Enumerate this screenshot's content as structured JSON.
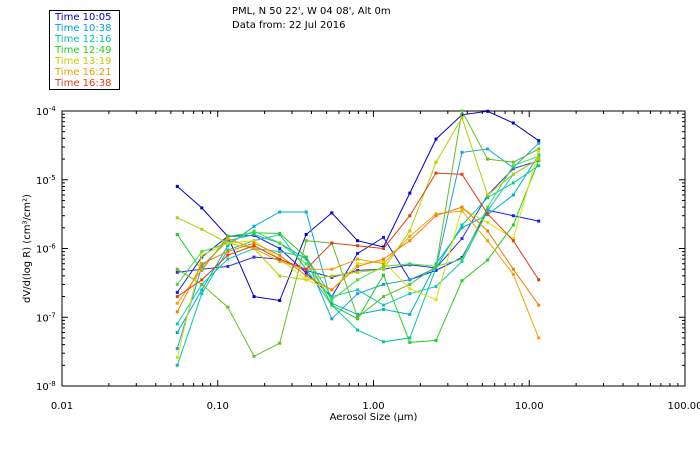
{
  "header": {
    "station": "PML, N 50 22', W 04 08', Alt 0m",
    "data_from": "Data from: 22 Jul 2016"
  },
  "chart_data": {
    "type": "line",
    "title": "PML, N 50 22', W 04 08', Alt 0m",
    "subtitle": "Data from: 22 Jul 2016",
    "xlabel": "Aerosol Size (µm)",
    "ylabel": "dV/d(log R) (cm³/cm²)",
    "xscale": "log",
    "yscale": "log",
    "xlim": [
      0.01,
      100
    ],
    "ylim": [
      1e-08,
      0.0001
    ],
    "x_ticks": [
      {
        "value": 0.01,
        "label": "0.01"
      },
      {
        "value": 0.1,
        "label": "0.10"
      },
      {
        "value": 1,
        "label": "1.00"
      },
      {
        "value": 10,
        "label": "10.00"
      },
      {
        "value": 100,
        "label": "100.00"
      }
    ],
    "y_ticks": [
      {
        "exp": -8,
        "mantissa": "10",
        "sup": "-8"
      },
      {
        "exp": -7,
        "mantissa": "10",
        "sup": "-7"
      },
      {
        "exp": -6,
        "mantissa": "10",
        "sup": "-6"
      },
      {
        "exp": -5,
        "mantissa": "10",
        "sup": "-5"
      },
      {
        "exp": -4,
        "mantissa": "10",
        "sup": "-4"
      }
    ],
    "x": [
      0.055,
      0.079,
      0.116,
      0.171,
      0.25,
      0.37,
      0.54,
      0.79,
      1.16,
      1.71,
      2.52,
      3.7,
      5.4,
      7.9,
      11.5
    ],
    "series": [
      {
        "name": "Time 10:05",
        "color": "#0000c8",
        "values": [
          8e-06,
          3.9e-06,
          1.5e-06,
          2e-07,
          1.75e-07,
          1.6e-06,
          3.3e-06,
          1.3e-06,
          1.05e-06,
          6.4e-06,
          3.9e-05,
          8.8e-05,
          9.9e-05,
          6.7e-05,
          3.7e-05
        ]
      },
      {
        "name": "Time 10:05",
        "color": "#1a1ae6",
        "values": [
          2.3e-07,
          7.5e-07,
          1.5e-06,
          1.55e-06,
          1e-06,
          4.4e-07,
          2e-07,
          8.5e-07,
          1.45e-06,
          3.5e-07,
          4.8e-07,
          7.4e-07,
          3.6e-06,
          3e-06,
          2.5e-06
        ]
      },
      {
        "name": "Time 10:05",
        "color": "#3333d0",
        "values": [
          4.5e-07,
          5e-07,
          5.5e-07,
          7.5e-07,
          7e-07,
          4.8e-07,
          3.8e-07,
          4.8e-07,
          5e-07,
          5.8e-07,
          5.2e-07,
          1.4e-06,
          6e-06,
          1.45e-05,
          1.9e-05
        ]
      },
      {
        "name": "Time 10:38",
        "color": "#1aa0e0",
        "values": [
          3.5e-08,
          5.5e-07,
          1.3e-06,
          1.6e-06,
          1.2e-06,
          7e-07,
          9.5e-08,
          2.2e-07,
          3e-07,
          3.5e-07,
          5.2e-07,
          2.5e-05,
          2.8e-05,
          1.5e-05,
          3.4e-05
        ]
      },
      {
        "name": "Time 10:38",
        "color": "#00b0d0",
        "values": [
          6e-08,
          2.5e-07,
          1.1e-06,
          2.1e-06,
          3.4e-06,
          3.4e-06,
          1.6e-07,
          1.1e-07,
          1.3e-07,
          1.1e-07,
          6e-07,
          2e-06,
          3.1e-06,
          6e-06,
          2.3e-05
        ]
      },
      {
        "name": "Time 12:16",
        "color": "#00c8a0",
        "values": [
          2e-08,
          2.2e-07,
          9.5e-07,
          1.3e-06,
          1.6e-06,
          5e-07,
          1.5e-07,
          6.5e-08,
          4.4e-08,
          5e-08,
          5.2e-07,
          2.2e-06,
          5.5e-06,
          9e-06,
          1.6e-05
        ]
      },
      {
        "name": "Time 12:16",
        "color": "#10c8b8",
        "values": [
          8e-08,
          3e-07,
          7e-07,
          1e-06,
          9e-07,
          7.5e-07,
          2e-07,
          2.5e-07,
          1.5e-07,
          2.2e-07,
          2.8e-07,
          6.5e-07,
          3.5e-06,
          1.2e-05,
          2e-05
        ]
      },
      {
        "name": "Time 12:49",
        "color": "#20d020",
        "values": [
          1.6e-06,
          4.8e-07,
          1.5e-06,
          1.7e-06,
          1.65e-06,
          7.5e-07,
          1.5e-07,
          9.5e-08,
          4.1e-07,
          4.3e-08,
          4.6e-08,
          3.4e-07,
          6.8e-07,
          2.2e-06,
          1.9e-05
        ]
      },
      {
        "name": "Time 12:49",
        "color": "#40e040",
        "values": [
          3e-07,
          9e-07,
          1.2e-06,
          1.8e-06,
          1.2e-06,
          6e-07,
          1.8e-07,
          3.5e-07,
          5.5e-07,
          6e-07,
          5.5e-07,
          7e-07,
          4e-06,
          1.6e-05,
          2.2e-05
        ]
      },
      {
        "name": "Time 12:49",
        "color": "#60c020",
        "values": [
          5e-07,
          3e-07,
          1.4e-07,
          2.7e-08,
          4.2e-08,
          1.3e-06,
          1.2e-06,
          1e-07,
          2e-07,
          3e-07,
          5.5e-07,
          0.0001,
          2e-05,
          1.8e-05,
          2.8e-05
        ]
      },
      {
        "name": "Time 13:19",
        "color": "#b0d000",
        "values": [
          2.8e-06,
          1.9e-06,
          1.2e-06,
          1e-06,
          4e-07,
          3.5e-07,
          4e-07,
          4.5e-07,
          5e-07,
          1.8e-06,
          1.8e-05,
          8e-05,
          6e-06,
          1.2e-05,
          2e-05
        ]
      },
      {
        "name": "Time 13:19",
        "color": "#e0e000",
        "values": [
          2.6e-08,
          8e-07,
          1.2e-06,
          1.3e-06,
          7e-07,
          3.5e-07,
          2.5e-07,
          6e-07,
          6.5e-07,
          2.6e-07,
          1.8e-07,
          3.8e-06,
          2.4e-06,
          1.4e-06,
          2.6e-05
        ]
      },
      {
        "name": "Time 16:21",
        "color": "#f0a000",
        "values": [
          1.6e-07,
          5e-07,
          1.4e-06,
          1e-06,
          6.5e-07,
          5e-07,
          5e-07,
          7e-07,
          6e-07,
          1.5e-06,
          3.2e-06,
          3.5e-06,
          1.3e-06,
          4.2e-07,
          5e-08
        ]
      },
      {
        "name": "Time 16:21",
        "color": "#f08000",
        "values": [
          1.2e-07,
          6e-07,
          9e-07,
          1.2e-06,
          8e-07,
          4e-07,
          2.5e-07,
          5.5e-07,
          7e-07,
          1.3e-06,
          3e-06,
          4e-06,
          1.8e-06,
          5e-07,
          1.5e-07
        ]
      },
      {
        "name": "Time 16:38",
        "color": "#e04010",
        "values": [
          2e-07,
          3.5e-07,
          8e-07,
          1.1e-06,
          7e-07,
          5e-07,
          1.2e-06,
          1.1e-06,
          1e-06,
          3e-06,
          1.25e-05,
          1.2e-05,
          3.2e-06,
          1.3e-06,
          3.5e-07
        ]
      }
    ]
  },
  "legend": {
    "items": [
      {
        "label": "Time 10:05",
        "color": "#0000c8"
      },
      {
        "label": "Time 10:38",
        "color": "#00a0e0"
      },
      {
        "label": "Time 12:16",
        "color": "#00c8a0"
      },
      {
        "label": "Time 12:49",
        "color": "#20d020"
      },
      {
        "label": "Time 13:19",
        "color": "#c0d000"
      },
      {
        "label": "Time 16:21",
        "color": "#f0a000"
      },
      {
        "label": "Time 16:38",
        "color": "#e04010"
      }
    ]
  }
}
